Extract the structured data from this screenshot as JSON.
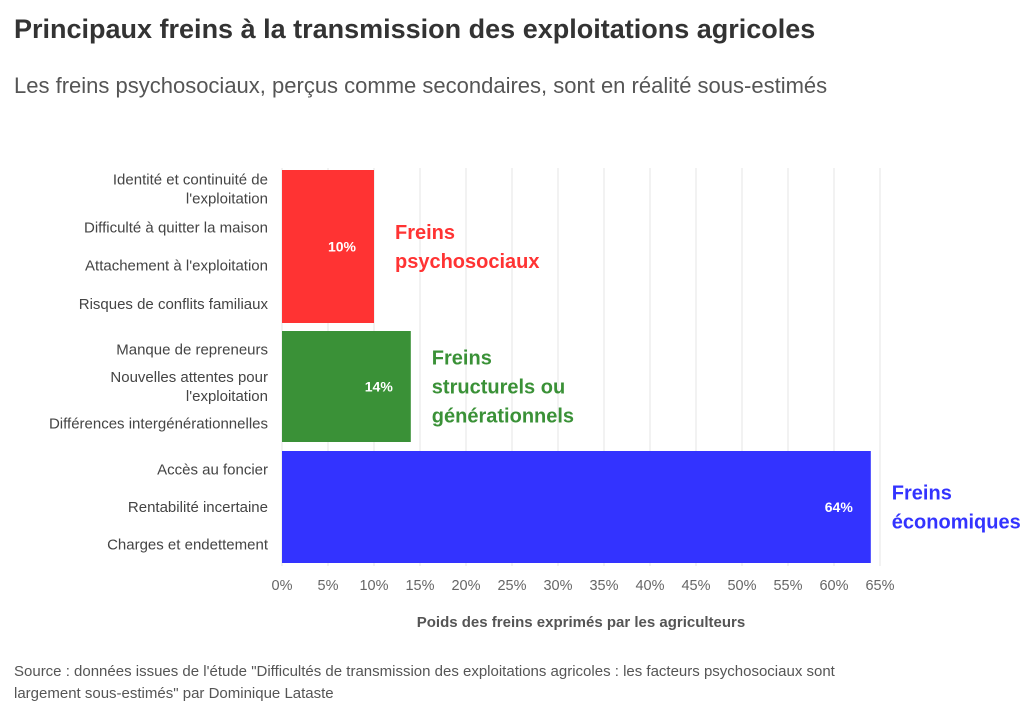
{
  "title": "Principaux freins à la transmission des exploitations agricoles",
  "subtitle": "Les freins psychosociaux, perçus comme secondaires, sont en réalité sous-estimés",
  "source": "Source : données issues de l'étude \"Difficultés de transmission des exploitations agricoles : les facteurs psychosociaux sont largement sous-estimés\" par Dominique Lataste",
  "chart_data": {
    "type": "bar",
    "orientation": "horizontal",
    "xlabel": "Poids des freins exprimés par les agriculteurs",
    "xlim": [
      0,
      65
    ],
    "xticks": [
      "0%",
      "5%",
      "10%",
      "15%",
      "20%",
      "25%",
      "30%",
      "35%",
      "40%",
      "45%",
      "50%",
      "55%",
      "60%",
      "65%"
    ],
    "grid": "vertical",
    "series": [
      {
        "name": "Freins psychosociaux",
        "label_lines": [
          "Freins",
          "psychosociaux"
        ],
        "value": 10,
        "value_label": "10%",
        "color": "#ff3333",
        "categories": [
          [
            "Identité et continuité de",
            "l'exploitation"
          ],
          [
            "Difficulté à quitter la maison"
          ],
          [
            "Attachement à l'exploitation"
          ],
          [
            "Risques de conflits familiaux"
          ]
        ]
      },
      {
        "name": "Freins structurels ou générationnels",
        "label_lines": [
          "Freins",
          "structurels ou",
          "générationnels"
        ],
        "value": 14,
        "value_label": "14%",
        "color": "#3a9137",
        "categories": [
          [
            "Manque de repreneurs"
          ],
          [
            "Nouvelles attentes pour",
            "l'exploitation"
          ],
          [
            "Différences intergénérationnelles"
          ]
        ]
      },
      {
        "name": "Freins économiques",
        "label_lines": [
          "Freins",
          "économiques"
        ],
        "value": 64,
        "value_label": "64%",
        "color": "#3333ff",
        "categories": [
          [
            "Accès au foncier"
          ],
          [
            "Rentabilité incertaine"
          ],
          [
            "Charges et endettement"
          ]
        ]
      }
    ]
  }
}
